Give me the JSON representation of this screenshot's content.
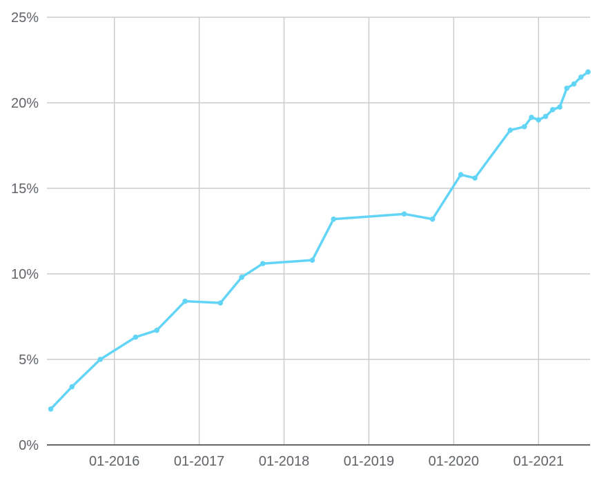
{
  "chart_data": {
    "type": "line",
    "title": "",
    "xlabel": "",
    "ylabel": "",
    "grid": true,
    "legend": "none",
    "color": "#62d4f6",
    "xlim": [
      "2015-03-15",
      "2021-08-10"
    ],
    "ylim": [
      0,
      25
    ],
    "y_ticks": [
      0,
      5,
      10,
      15,
      20,
      25
    ],
    "y_tick_labels": [
      "0%",
      "5%",
      "10%",
      "15%",
      "20%",
      "25%"
    ],
    "x_ticks": [
      "2016-01",
      "2017-01",
      "2018-01",
      "2019-01",
      "2020-01",
      "2021-01"
    ],
    "x_tick_labels": [
      "01-2016",
      "01-2017",
      "01-2018",
      "01-2019",
      "01-2020",
      "01-2021"
    ],
    "series": [
      {
        "x": [
          "2015-04",
          "2015-07",
          "2015-11",
          "2016-04",
          "2016-07",
          "2016-11",
          "2017-04",
          "2017-07",
          "2017-10",
          "2018-05",
          "2018-08",
          "2019-06",
          "2019-10",
          "2020-02",
          "2020-04",
          "2020-09",
          "2020-11",
          "2020-12",
          "2021-01",
          "2021-02",
          "2021-03",
          "2021-04",
          "2021-05",
          "2021-06",
          "2021-07",
          "2021-08"
        ],
        "values": [
          2.1,
          3.4,
          5.0,
          6.3,
          6.7,
          8.4,
          8.3,
          9.8,
          10.6,
          10.8,
          13.2,
          13.5,
          13.2,
          15.8,
          15.6,
          18.4,
          18.6,
          19.15,
          19.0,
          19.2,
          19.6,
          19.75,
          20.85,
          21.1,
          21.5,
          21.8
        ]
      }
    ]
  }
}
